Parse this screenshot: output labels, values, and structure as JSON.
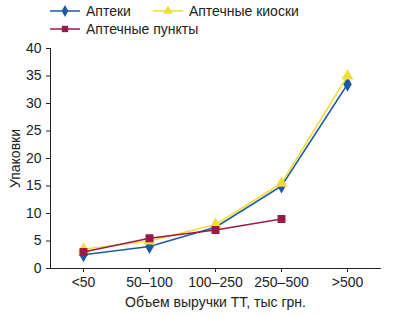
{
  "chart_data": {
    "type": "line",
    "x_label": "Объем выручки ТТ, тыс грн.",
    "y_label": "Упаковки",
    "categories": [
      "<50",
      "50–100",
      "100–250",
      "250–500",
      ">500"
    ],
    "series": [
      {
        "name": "Аптеки",
        "color": "#1f5aa6",
        "marker": "diamond",
        "values": [
          2.5,
          4,
          7.5,
          15,
          33.5
        ]
      },
      {
        "name": "Аптечные киоски",
        "color": "#f2dc3a",
        "marker": "triangle",
        "values": [
          3.5,
          5,
          8,
          15.5,
          35
        ]
      },
      {
        "name": "Аптечные пункты",
        "color": "#9a1a4a",
        "marker": "square",
        "values": [
          3,
          5.5,
          7,
          9,
          null
        ]
      }
    ],
    "ylim": [
      0,
      40
    ],
    "yticks": [
      0,
      5,
      10,
      15,
      20,
      25,
      30,
      35,
      40
    ],
    "grid": false,
    "legend": "top"
  }
}
